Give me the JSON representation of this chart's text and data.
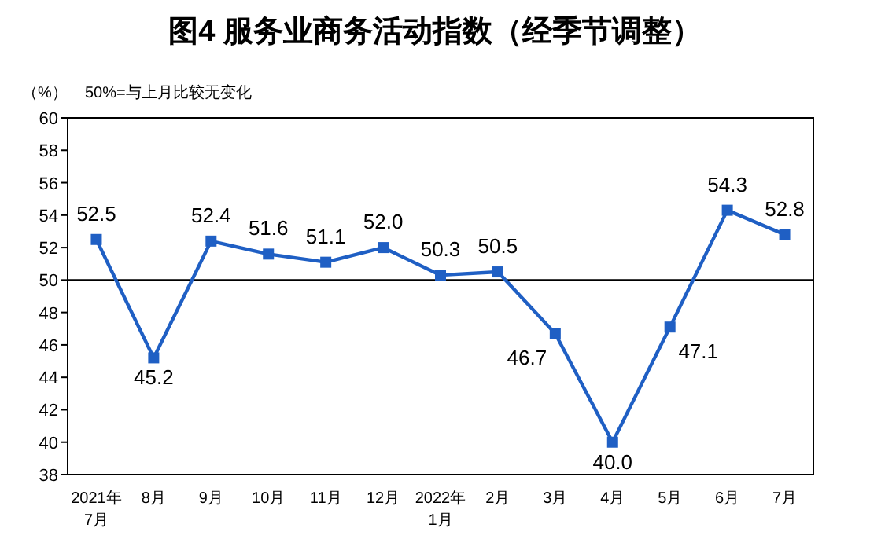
{
  "chart_data": {
    "type": "line",
    "title": "图4  服务业商务活动指数（经季节调整）",
    "ylabel": "（%）",
    "annotations": [
      "50%=与上月比较无变化"
    ],
    "categories": [
      "2021年\n7月",
      "8月",
      "9月",
      "10月",
      "11月",
      "12月",
      "2022年\n1月",
      "2月",
      "3月",
      "4月",
      "5月",
      "6月",
      "7月"
    ],
    "series": [
      {
        "color": "#1f5fc4",
        "values": [
          52.5,
          45.2,
          52.4,
          51.6,
          51.1,
          52.0,
          50.3,
          50.5,
          46.7,
          40.0,
          47.1,
          54.3,
          52.8
        ],
        "value_labels": [
          "52.5",
          "45.2",
          "52.4",
          "51.6",
          "51.1",
          "52.0",
          "50.3",
          "50.5",
          "46.7",
          "40.0",
          "47.1",
          "54.3",
          "52.8"
        ]
      }
    ],
    "ylim": [
      38,
      60
    ],
    "yticks": [
      38,
      40,
      42,
      44,
      46,
      48,
      50,
      52,
      54,
      56,
      58,
      60
    ],
    "ref_lines": [
      {
        "axis": "y",
        "value": 50,
        "color": "#000000"
      }
    ],
    "marker": "square"
  }
}
